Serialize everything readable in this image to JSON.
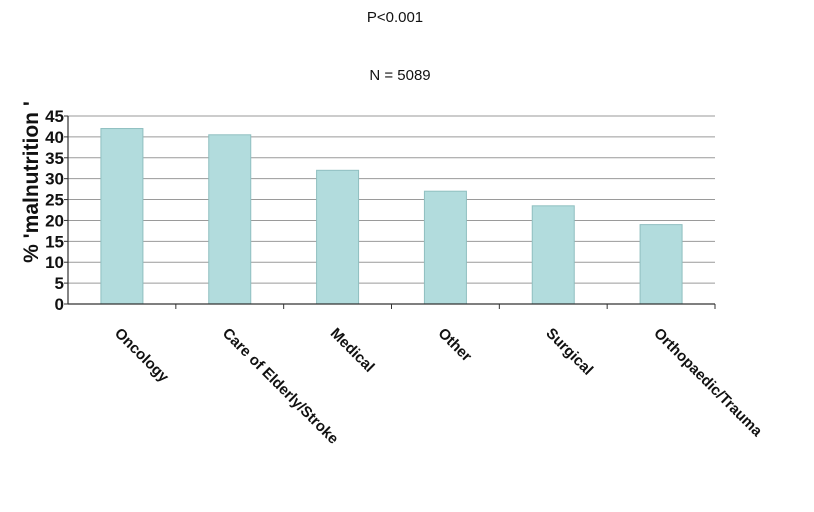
{
  "chart_data": {
    "type": "bar",
    "title": "",
    "annotations": [
      "P<0.001",
      "N = 5089"
    ],
    "ylabel": "% 'malnutrition '",
    "xlabel": "",
    "categories": [
      "Oncology",
      "Care of Elderly/Stroke",
      "Medical",
      "Other",
      "Surgical",
      "Orthopaedic/Trauma"
    ],
    "values": [
      42,
      40.5,
      32,
      27,
      23.5,
      19
    ],
    "ylim": [
      0,
      45
    ],
    "yticks": [
      0,
      5,
      10,
      15,
      20,
      25,
      30,
      35,
      40,
      45
    ],
    "grid": true,
    "legend": "none",
    "bar_color": "#b2dcdd",
    "bar_edge_color": "#8fbfc0"
  }
}
